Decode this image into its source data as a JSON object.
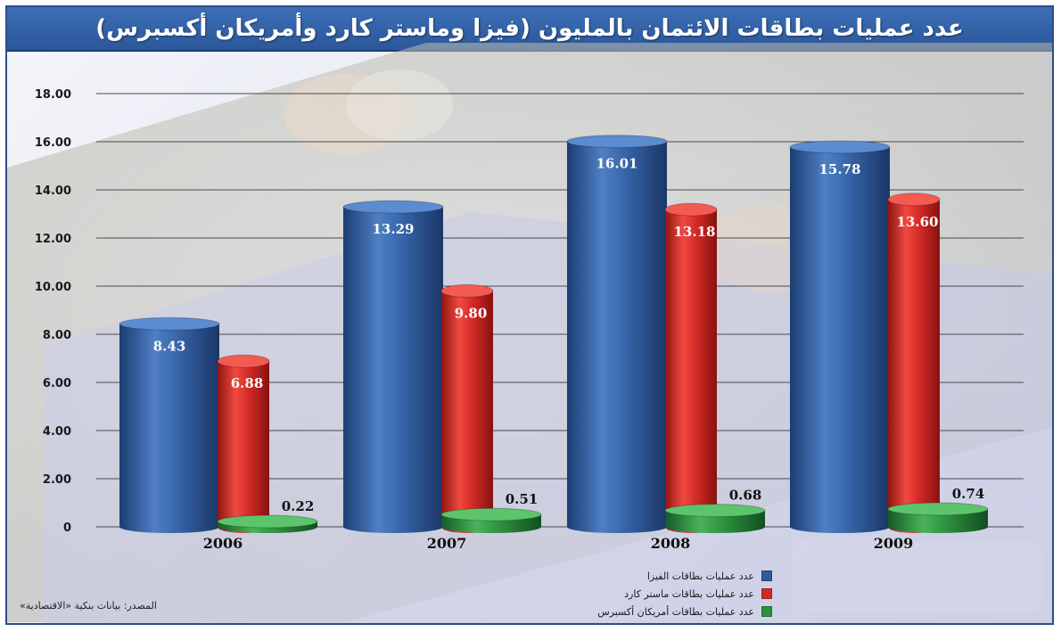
{
  "title": "عدد عمليات بطاقات الائتمان بالمليون (فيزا وماستر كارد وأمريكان أكسبرس)",
  "source": "المصدر: بيانات بنكية «الاقتصادية»",
  "colors": {
    "visa": "#2f5a9c",
    "mastercard": "#d42a26",
    "amex": "#2c8f3c",
    "title_bg": "#3566ad"
  },
  "chart_data": {
    "type": "bar",
    "title": "عدد عمليات بطاقات الائتمان بالمليون (فيزا وماستر كارد وأمريكان أكسبرس)",
    "categories": [
      "2006",
      "2007",
      "2008",
      "2009"
    ],
    "series": [
      {
        "name": "عدد عمليات بطاقات الفيزا",
        "values": [
          8.43,
          13.29,
          16.01,
          15.78
        ],
        "labels": [
          "8.43",
          "13.29",
          "16.01",
          "15.78"
        ]
      },
      {
        "name": "عدد عمليات بطاقات ماستر كارد",
        "values": [
          6.88,
          9.8,
          13.18,
          13.6
        ],
        "labels": [
          "6.88",
          "9.80",
          "13.18",
          "13.60"
        ]
      },
      {
        "name": "عدد عمليات بطاقات أمريكان أكسبرس",
        "values": [
          0.22,
          0.51,
          0.68,
          0.74
        ],
        "labels": [
          "0.22",
          "0.51",
          "0.68",
          "0.74"
        ]
      }
    ],
    "y_ticks": [
      "0",
      "2.00",
      "4.00",
      "6.00",
      "8.00",
      "10.00",
      "12.00",
      "14.00",
      "16.00",
      "18.00"
    ],
    "ylim": [
      0,
      18
    ],
    "grid": true,
    "legend_position": "bottom-right"
  }
}
